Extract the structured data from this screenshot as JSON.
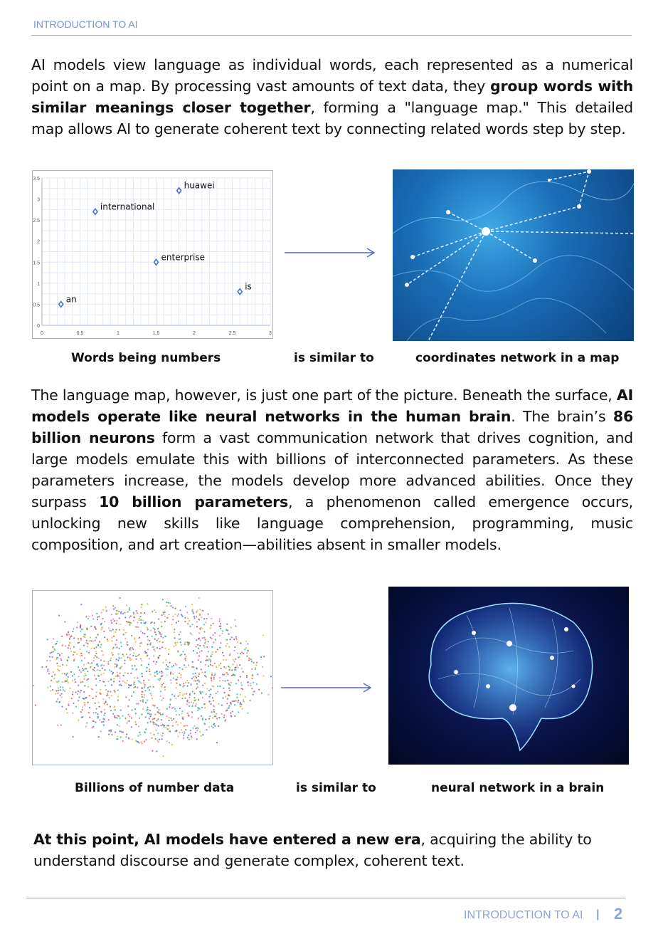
{
  "header": {
    "title": "INTRODUCTION TO AI"
  },
  "para1": {
    "t1": "AI models view language as individual words, each represented as a numerical point on a map. By processing vast amounts of text data, they ",
    "b1": "group words with similar meanings closer together",
    "t2": ", forming a \"language map.\" This detailed map allows AI to generate coherent text by connecting related words step by step."
  },
  "figure1": {
    "captions": {
      "left": "Words being numbers",
      "middle": "is similar to",
      "right": "coordinates network in a map"
    }
  },
  "chart_data": {
    "type": "scatter",
    "xlim": [
      0,
      3
    ],
    "ylim": [
      0,
      3.5
    ],
    "x_ticks": [
      "0",
      "0.5",
      "1",
      "1.5",
      "2",
      "2.5",
      "3"
    ],
    "y_ticks": [
      "0",
      "0.5",
      "1",
      "1.5",
      "2",
      "2.5",
      "3",
      "3.5"
    ],
    "grid": true,
    "marker_color": "#4472c4",
    "points": [
      {
        "label": "an",
        "x": 0.25,
        "y": 0.5
      },
      {
        "label": "international",
        "x": 0.7,
        "y": 2.7
      },
      {
        "label": "huawei",
        "x": 1.8,
        "y": 3.2
      },
      {
        "label": "enterprise",
        "x": 1.5,
        "y": 1.5
      },
      {
        "label": "is",
        "x": 2.6,
        "y": 0.8
      }
    ]
  },
  "para2": {
    "t1": "The language map, however, is just one part of the picture. Beneath the surface, ",
    "b1": "AI models operate like neural networks in the human brain",
    "t2": ". The brain’s ",
    "b2": "86 billion neurons",
    "t3": " form a vast communication network that drives cognition, and large models emulate this with billions of interconnected parameters. As these parameters increase, the models develop more advanced abilities. Once they surpass ",
    "b3": "10 billion parameters",
    "t4": ", a phenomenon called emergence occurs, unlocking new skills like language comprehension, programming, music composition, and art creation—abilities absent in smaller models."
  },
  "figure2": {
    "captions": {
      "left": "Billions of number data",
      "middle": "is similar to",
      "right": "neural network in a brain"
    }
  },
  "para3": {
    "b1": "At this point, AI models have entered a new era",
    "t1": ", acquiring the ability to understand discourse and generate complex, coherent text."
  },
  "footer": {
    "title": "INTRODUCTION TO AI",
    "separator": "|",
    "page": "2"
  },
  "colors": {
    "accent": "#7b93d8",
    "arrow": "#4a6fc7"
  }
}
